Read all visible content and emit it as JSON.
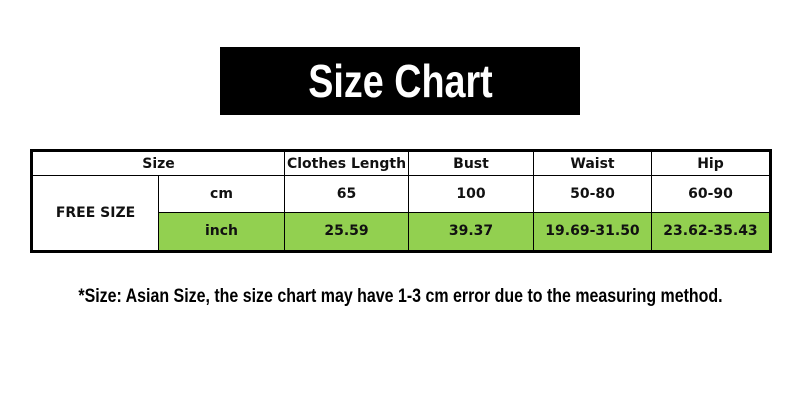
{
  "title": "Size Chart",
  "table": {
    "size_header": "Size",
    "columns": [
      "Clothes Length",
      "Bust",
      "Waist",
      "Hip"
    ],
    "size_label": "FREE SIZE",
    "rows": [
      {
        "unit": "cm",
        "values": [
          "65",
          "100",
          "50-80",
          "60-90"
        ]
      },
      {
        "unit": "inch",
        "values": [
          "25.59",
          "39.37",
          "19.69-31.50",
          "23.62-35.43"
        ]
      }
    ]
  },
  "note": "*Size: Asian Size, the size chart may have 1-3 cm error due to the measuring method.",
  "colors": {
    "title_bg": "#000000",
    "inch_row": "#92d050"
  }
}
